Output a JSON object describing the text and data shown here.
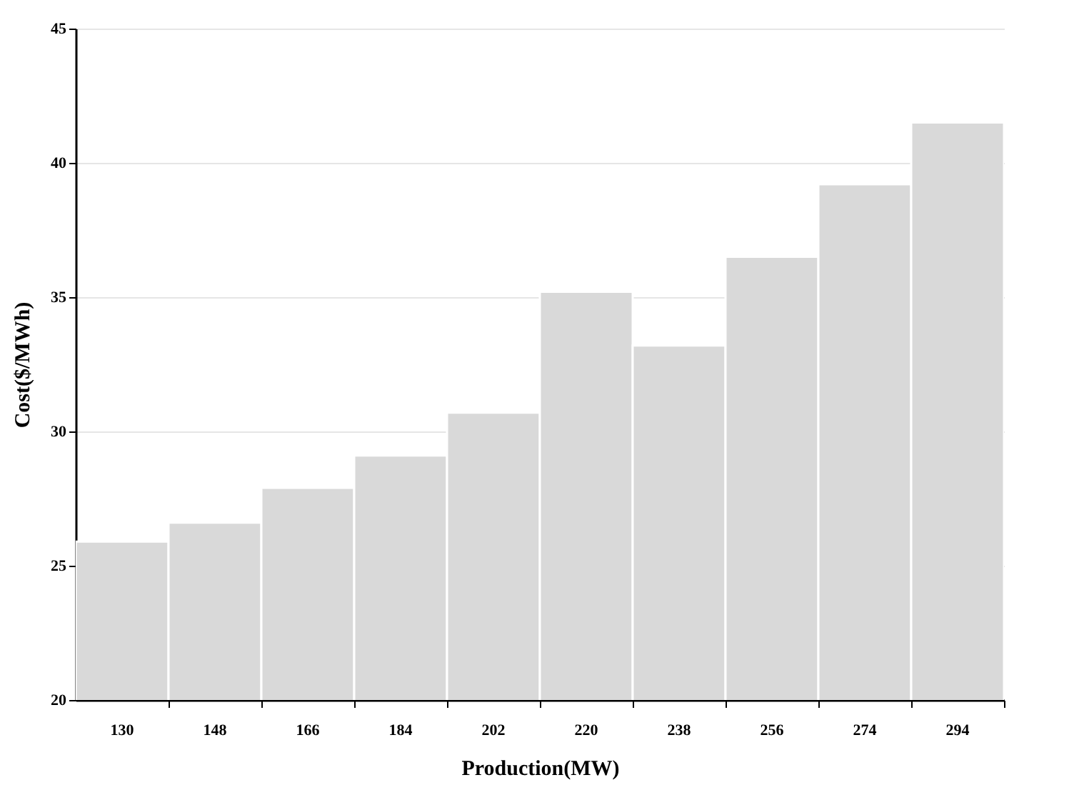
{
  "chart_data": {
    "type": "bar",
    "xlabel": "Production(MW)",
    "ylabel": "Cost($/MWh)",
    "categories": [
      "130",
      "148",
      "166",
      "184",
      "202",
      "220",
      "238",
      "256",
      "274",
      "294"
    ],
    "values": [
      25.9,
      26.6,
      27.9,
      29.1,
      30.7,
      35.2,
      33.2,
      36.5,
      39.2,
      41.5
    ],
    "color": "#d9d9d9",
    "ylim": [
      20,
      45
    ],
    "yticks": [
      20,
      25,
      30,
      35,
      40,
      45
    ],
    "grid": "y"
  }
}
